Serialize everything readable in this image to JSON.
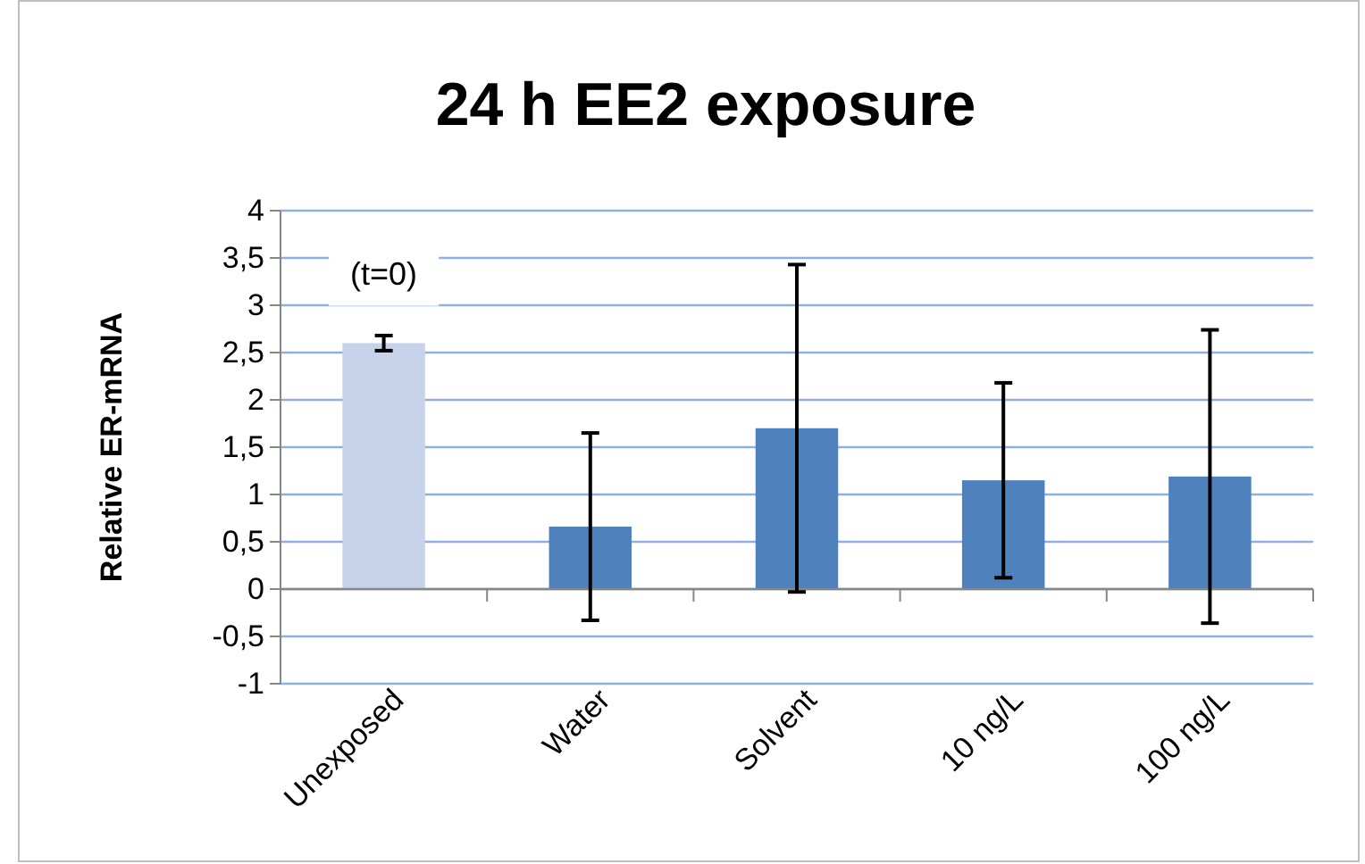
{
  "chart_data": {
    "type": "bar",
    "title": "24 h EE2 exposure",
    "ylabel": "Relative ER-mRNA",
    "categories": [
      "Unexposed",
      "Water",
      "Solvent",
      "10 ng/L",
      "100 ng/L"
    ],
    "values": [
      2.6,
      0.66,
      1.7,
      1.15,
      1.19
    ],
    "errors": [
      0.08,
      0.99,
      1.73,
      1.03,
      1.55
    ],
    "colors": [
      "#c6d3ea",
      "#4f81bd",
      "#4f81bd",
      "#4f81bd",
      "#4f81bd"
    ],
    "ylim": [
      -1,
      4
    ],
    "yticks": [
      -1,
      {
        "value": -0.5,
        "label": "-0,5"
      },
      0,
      {
        "value": 0.5,
        "label": "0,5"
      },
      1,
      {
        "value": 1.5,
        "label": "1,5"
      },
      2,
      {
        "value": 2.5,
        "label": "2,5"
      },
      3,
      {
        "value": 3.5,
        "label": "3,5"
      },
      4
    ],
    "grid": "y",
    "annotations": [
      "(t=0)"
    ]
  }
}
